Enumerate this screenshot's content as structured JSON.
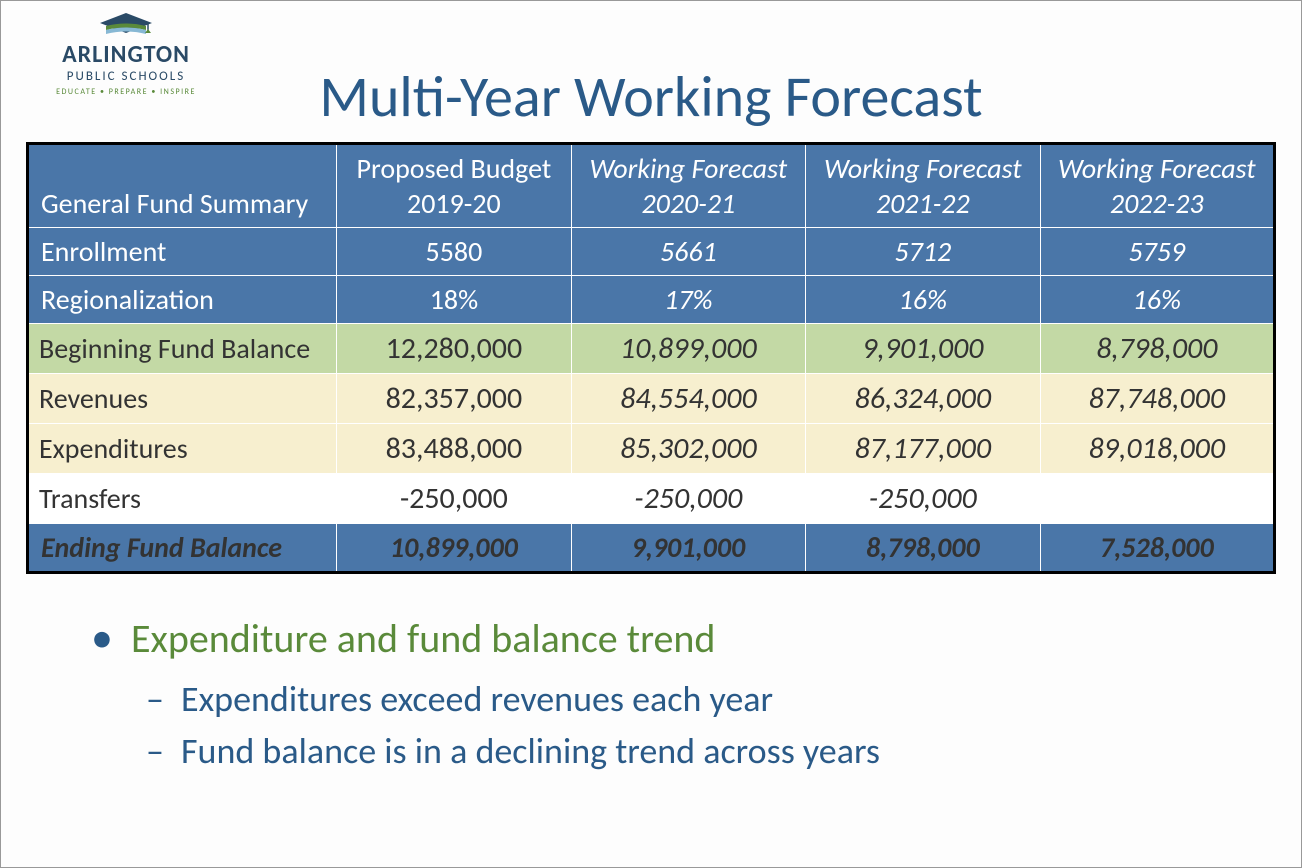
{
  "logo": {
    "name": "ARLINGTON",
    "sub": "PUBLIC SCHOOLS",
    "tag": "EDUCATE • PREPARE • INSPIRE",
    "cap_color": "#2a4a66",
    "cap_accent": "#5a8a3a",
    "cap_stripe": "#87b8d4"
  },
  "title": "Multi-Year Working Forecast",
  "colors": {
    "header_bg": "#4a76a8",
    "green_bg": "#c3d9a5",
    "cream_bg": "#f7efcf",
    "title_color": "#2a5a88",
    "bullet_green": "#5a8a3a"
  },
  "table": {
    "type": "table",
    "corner_label": "General Fund Summary",
    "columns": [
      {
        "l1": "Proposed Budget",
        "l2": "2019-20",
        "italic": false
      },
      {
        "l1": "Working Forecast",
        "l2": "2020-21",
        "italic": true
      },
      {
        "l1": "Working Forecast",
        "l2": "2021-22",
        "italic": true
      },
      {
        "l1": "Working Forecast",
        "l2": "2022-23",
        "italic": true
      }
    ],
    "subheaders": [
      {
        "label": "Enrollment",
        "values": [
          "5580",
          "5661",
          "5712",
          "5759"
        ]
      },
      {
        "label": "Regionalization",
        "values": [
          "18%",
          "17%",
          "16%",
          "16%"
        ]
      }
    ],
    "body": [
      {
        "label": "Beginning Fund Balance",
        "style": "green",
        "values": [
          "12,280,000",
          "10,899,000",
          "9,901,000",
          "8,798,000"
        ]
      },
      {
        "label": "Revenues",
        "style": "cream",
        "values": [
          "82,357,000",
          "84,554,000",
          "86,324,000",
          "87,748,000"
        ]
      },
      {
        "label": "Expenditures",
        "style": "cream",
        "values": [
          "83,488,000",
          "85,302,000",
          "87,177,000",
          "89,018,000"
        ]
      },
      {
        "label": "Transfers",
        "style": "white",
        "values": [
          "-250,000",
          "-250,000",
          "-250,000",
          ""
        ]
      }
    ],
    "footer": {
      "label": "Ending Fund Balance",
      "values": [
        "10,899,000",
        "9,901,000",
        "8,798,000",
        "7,528,000"
      ]
    }
  },
  "bullets": {
    "main": "Expenditure and fund balance trend",
    "subs": [
      "Expenditures exceed revenues each year",
      "Fund balance is in a declining trend across years"
    ]
  }
}
